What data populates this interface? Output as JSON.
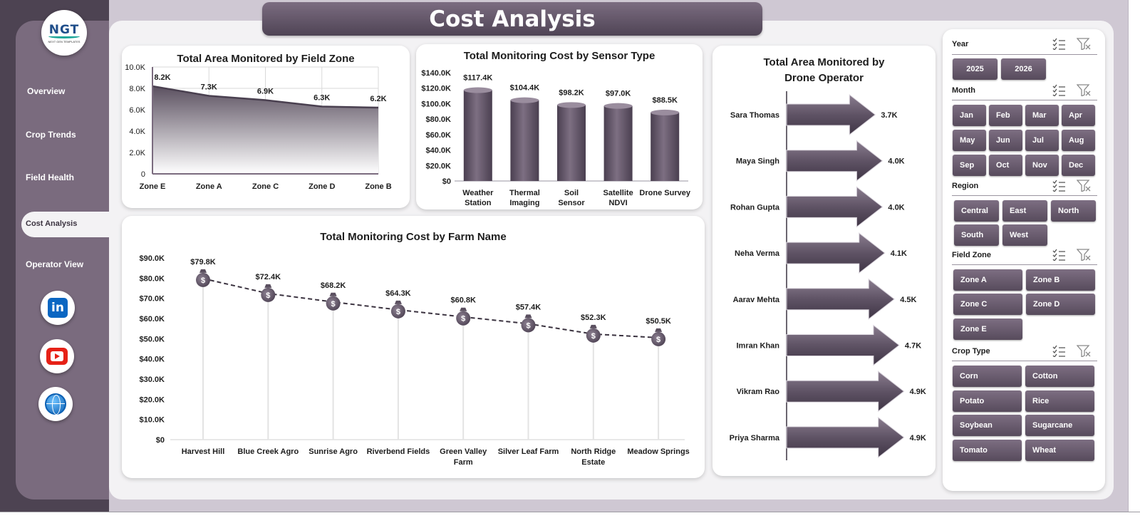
{
  "header": {
    "title": "Cost Analysis"
  },
  "brand": {
    "logo_text": "NGT",
    "logo_sub": "NEXT GEN TEMPLATES"
  },
  "nav": {
    "items": [
      "Overview",
      "Crop Trends",
      "Field Health",
      "Cost Analysis",
      "Operator View"
    ],
    "active": "Cost Analysis"
  },
  "social": {
    "linkedin": "in"
  },
  "colors": {
    "accent": "#574b5c",
    "sidebar": "#7a6b7e",
    "frame": "#cfc8d3",
    "background": "#f3f2f4"
  },
  "slicers": {
    "year": {
      "title": "Year",
      "items": [
        "2025",
        "2026"
      ]
    },
    "month": {
      "title": "Month",
      "items": [
        "Jan",
        "Feb",
        "Mar",
        "Apr",
        "May",
        "Jun",
        "Jul",
        "Aug",
        "Sep",
        "Oct",
        "Nov",
        "Dec"
      ]
    },
    "region": {
      "title": "Region",
      "items": [
        "Central",
        "East",
        "North",
        "South",
        "West"
      ]
    },
    "field_zone": {
      "title": "Field Zone",
      "items": [
        "Zone A",
        "Zone B",
        "Zone C",
        "Zone D",
        "Zone E"
      ]
    },
    "crop_type": {
      "title": "Crop Type",
      "items": [
        "Corn",
        "Cotton",
        "Potato",
        "Rice",
        "Soybean",
        "Sugarcane",
        "Tomato",
        "Wheat"
      ]
    }
  },
  "chart_data": [
    {
      "id": "area_by_zone",
      "type": "area",
      "title": "Total Area Monitored by Field Zone",
      "categories": [
        "Zone E",
        "Zone A",
        "Zone C",
        "Zone D",
        "Zone B"
      ],
      "values": [
        8200,
        7300,
        6900,
        6300,
        6200
      ],
      "data_labels": [
        "8.2K",
        "7.3K",
        "6.9K",
        "6.3K",
        "6.2K"
      ],
      "yticks": [
        "0",
        "2.0K",
        "4.0K",
        "6.0K",
        "8.0K",
        "10.0K"
      ],
      "ylim": [
        0,
        10000
      ],
      "grid": true
    },
    {
      "id": "cost_by_sensor",
      "type": "bar",
      "title": "Total Monitoring Cost by Sensor Type",
      "categories": [
        "Weather Station",
        "Thermal Imaging",
        "Soil Sensor",
        "Satellite NDVI",
        "Drone Survey"
      ],
      "values": [
        117400,
        104400,
        98200,
        97000,
        88500
      ],
      "data_labels": [
        "$117.4K",
        "$104.4K",
        "$98.2K",
        "$97.0K",
        "$88.5K"
      ],
      "yticks": [
        "$0",
        "$20.0K",
        "$40.0K",
        "$60.0K",
        "$80.0K",
        "$100.0K",
        "$120.0K",
        "$140.0K"
      ],
      "ylim": [
        0,
        140000
      ],
      "grid": false
    },
    {
      "id": "cost_by_farm",
      "type": "line",
      "title": "Total Monitoring Cost by Farm Name",
      "categories": [
        "Harvest Hill",
        "Blue Creek Agro",
        "Sunrise Agro",
        "Riverbend Fields",
        "Green Valley Farm",
        "Silver Leaf Farm",
        "North Ridge Estate",
        "Meadow Springs"
      ],
      "values": [
        79800,
        72400,
        68200,
        64300,
        60800,
        57400,
        52300,
        50500
      ],
      "data_labels": [
        "$79.8K",
        "$72.4K",
        "$68.2K",
        "$64.3K",
        "$60.8K",
        "$57.4K",
        "$52.3K",
        "$50.5K"
      ],
      "yticks": [
        "$0",
        "$10.0K",
        "$20.0K",
        "$30.0K",
        "$40.0K",
        "$50.0K",
        "$60.0K",
        "$70.0K",
        "$80.0K",
        "$90.0K"
      ],
      "ylim": [
        0,
        90000
      ],
      "marker": "money-bag-icon",
      "grid": false
    },
    {
      "id": "area_by_operator",
      "type": "bar",
      "orientation": "horizontal",
      "title": "Total Area Monitored by Drone Operator",
      "categories": [
        "Sara Thomas",
        "Maya Singh",
        "Rohan Gupta",
        "Neha Verma",
        "Aarav Mehta",
        "Imran Khan",
        "Vikram Rao",
        "Priya Sharma"
      ],
      "values": [
        3700,
        4000,
        4000,
        4100,
        4500,
        4700,
        4900,
        4900
      ],
      "data_labels": [
        "3.7K",
        "4.0K",
        "4.0K",
        "4.1K",
        "4.5K",
        "4.7K",
        "4.9K",
        "4.9K"
      ],
      "marker": "arrow",
      "grid": false
    }
  ]
}
